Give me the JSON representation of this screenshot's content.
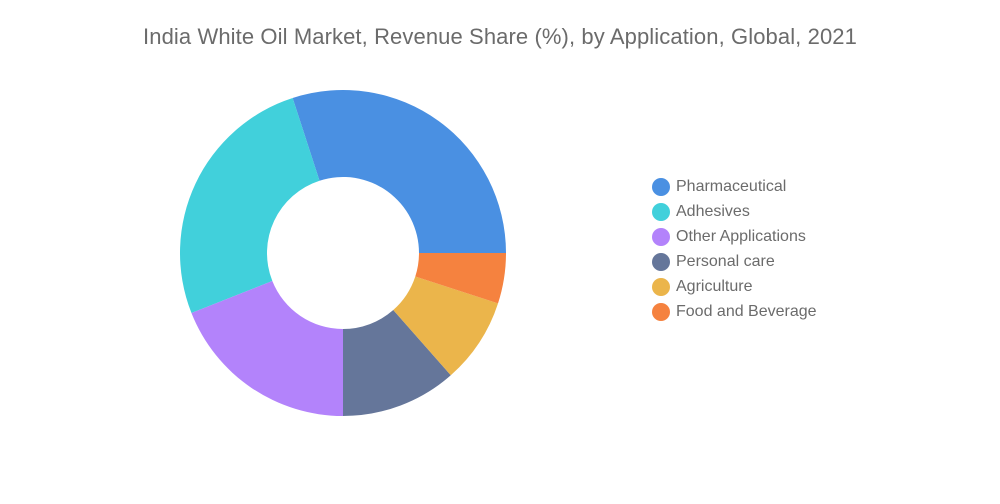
{
  "chart_data": {
    "type": "pie",
    "variant": "donut",
    "title": "India White Oil Market, Revenue Share (%), by Application, Global, 2021",
    "legend_position": "right",
    "series": [
      {
        "name": "Pharmaceutical",
        "value": 30,
        "color": "#4a90e2"
      },
      {
        "name": "Adhesives",
        "value": 26,
        "color": "#41d0db"
      },
      {
        "name": "Other Applications",
        "value": 19,
        "color": "#b383fb"
      },
      {
        "name": "Personal care",
        "value": 11.5,
        "color": "#65769a"
      },
      {
        "name": "Agriculture",
        "value": 8.5,
        "color": "#ebb54b"
      },
      {
        "name": "Food and Beverage",
        "value": 5,
        "color": "#f5823f"
      }
    ]
  }
}
